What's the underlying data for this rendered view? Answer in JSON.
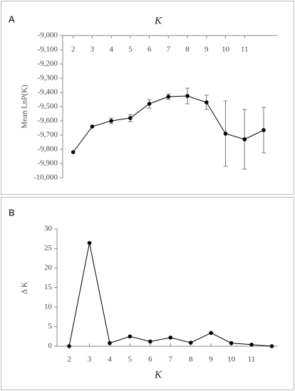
{
  "chart_data": [
    {
      "type": "line",
      "panel_label": "A",
      "x_label": "K",
      "y_label": "Mean LnP(K)",
      "x_axis_position": "top",
      "x": [
        2,
        3,
        4,
        5,
        6,
        7,
        8,
        9,
        10,
        11,
        12
      ],
      "series": [
        {
          "color": "#000000",
          "values": [
            -9820,
            -9640,
            -9600,
            -9580,
            -9480,
            -9430,
            -9425,
            -9470,
            -9690,
            -9730,
            -9665
          ],
          "errors": [
            0,
            0,
            20,
            25,
            30,
            20,
            55,
            50,
            230,
            210,
            160
          ]
        }
      ],
      "xlim": [
        1.45,
        12.75
      ],
      "xticks": [
        2,
        3,
        4,
        5,
        6,
        7,
        8,
        9,
        10,
        11
      ],
      "ylim": [
        -10000,
        -9000
      ],
      "yticks": [
        {
          "value": -9000,
          "label": "-9,000"
        },
        {
          "value": -9100,
          "label": "-9,100"
        },
        {
          "value": -9200,
          "label": "-9,200"
        },
        {
          "value": -9300,
          "label": "-9,300"
        },
        {
          "value": -9400,
          "label": "-9,400"
        },
        {
          "value": -9500,
          "label": "-9,500"
        },
        {
          "value": -9600,
          "label": "-9,600"
        },
        {
          "value": -9700,
          "label": "-9,700"
        },
        {
          "value": -9800,
          "label": "-9,800"
        },
        {
          "value": -9900,
          "label": "-9,900"
        },
        {
          "value": -10000,
          "label": "-10,000"
        }
      ]
    },
    {
      "type": "line",
      "panel_label": "B",
      "x_label": "K",
      "y_label": "Δ K",
      "x_axis_position": "bottom",
      "x": [
        2,
        3,
        4,
        5,
        6,
        7,
        8,
        9,
        10,
        11,
        12
      ],
      "series": [
        {
          "color": "#000000",
          "values": [
            0,
            26.4,
            0.8,
            2.5,
            1.2,
            2.2,
            0.9,
            3.4,
            0.8,
            0.4,
            0
          ]
        }
      ],
      "xlim": [
        1.4,
        12.3
      ],
      "xticks": [
        2,
        3,
        4,
        5,
        6,
        7,
        8,
        9,
        10,
        11
      ],
      "ylim": [
        0,
        30
      ],
      "yticks": [
        0,
        5,
        10,
        15,
        20,
        25,
        30
      ]
    }
  ]
}
